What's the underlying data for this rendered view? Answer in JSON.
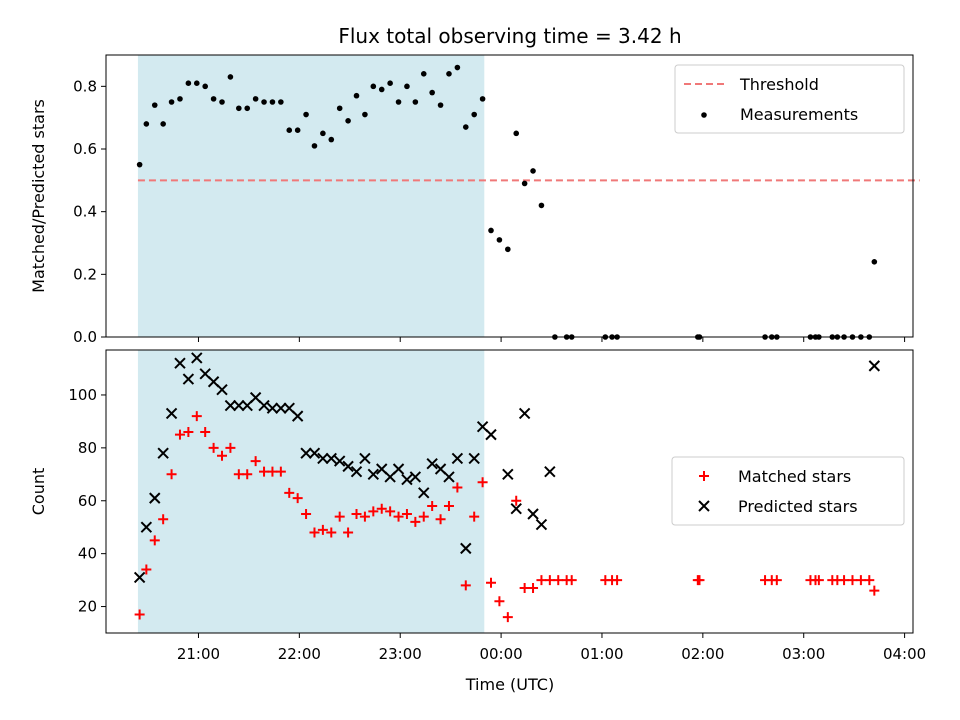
{
  "figure": {
    "title": "Flux total observing time = 3.42 h",
    "xlabel": "Time (UTC)"
  },
  "chart_data": [
    {
      "type": "scatter",
      "ylabel": "Matched/Predicted stars",
      "ylim": [
        0,
        0.9
      ],
      "yticks": [
        "0.0",
        "0.2",
        "0.4",
        "0.6",
        "0.8"
      ],
      "xlim": [
        "20:05",
        "04:05"
      ],
      "shaded_region": {
        "from": "20:24",
        "to": "23:50",
        "color": "#d3eaf0"
      },
      "threshold": {
        "name": "Threshold",
        "value": 0.5,
        "from": "20:24",
        "to": "04:09",
        "color": "#f07878"
      },
      "legend": {
        "position": "top-right",
        "entries": [
          "Threshold",
          "Measurements"
        ]
      },
      "series": [
        {
          "name": "Measurements",
          "marker": "dot",
          "color": "#000000",
          "points": [
            [
              "20:25",
              0.55
            ],
            [
              "20:29",
              0.68
            ],
            [
              "20:34",
              0.74
            ],
            [
              "20:39",
              0.68
            ],
            [
              "20:44",
              0.75
            ],
            [
              "20:49",
              0.76
            ],
            [
              "20:54",
              0.81
            ],
            [
              "20:59",
              0.81
            ],
            [
              "21:04",
              0.8
            ],
            [
              "21:09",
              0.76
            ],
            [
              "21:14",
              0.75
            ],
            [
              "21:19",
              0.83
            ],
            [
              "21:24",
              0.73
            ],
            [
              "21:29",
              0.73
            ],
            [
              "21:34",
              0.76
            ],
            [
              "21:39",
              0.75
            ],
            [
              "21:44",
              0.75
            ],
            [
              "21:49",
              0.75
            ],
            [
              "21:54",
              0.66
            ],
            [
              "21:59",
              0.66
            ],
            [
              "22:04",
              0.71
            ],
            [
              "22:09",
              0.61
            ],
            [
              "22:14",
              0.65
            ],
            [
              "22:19",
              0.63
            ],
            [
              "22:24",
              0.73
            ],
            [
              "22:29",
              0.69
            ],
            [
              "22:34",
              0.77
            ],
            [
              "22:39",
              0.71
            ],
            [
              "22:44",
              0.8
            ],
            [
              "22:49",
              0.79
            ],
            [
              "22:54",
              0.81
            ],
            [
              "22:59",
              0.75
            ],
            [
              "23:04",
              0.8
            ],
            [
              "23:09",
              0.75
            ],
            [
              "23:14",
              0.84
            ],
            [
              "23:19",
              0.78
            ],
            [
              "23:24",
              0.74
            ],
            [
              "23:29",
              0.84
            ],
            [
              "23:34",
              0.86
            ],
            [
              "23:39",
              0.67
            ],
            [
              "23:44",
              0.71
            ],
            [
              "23:49",
              0.76
            ],
            [
              "23:54",
              0.34
            ],
            [
              "23:59",
              0.31
            ],
            [
              "00:04",
              0.28
            ],
            [
              "00:09",
              0.65
            ],
            [
              "00:14",
              0.49
            ],
            [
              "00:19",
              0.53
            ],
            [
              "00:24",
              0.42
            ],
            [
              "00:32",
              0.0
            ],
            [
              "00:39",
              0.0
            ],
            [
              "00:42",
              0.0
            ],
            [
              "01:02",
              0.0
            ],
            [
              "01:06",
              0.0
            ],
            [
              "01:09",
              0.0
            ],
            [
              "01:57",
              0.0
            ],
            [
              "01:58",
              0.0
            ],
            [
              "02:37",
              0.0
            ],
            [
              "02:41",
              0.0
            ],
            [
              "02:44",
              0.0
            ],
            [
              "03:04",
              0.0
            ],
            [
              "03:07",
              0.0
            ],
            [
              "03:09",
              0.0
            ],
            [
              "03:17",
              0.0
            ],
            [
              "03:20",
              0.0
            ],
            [
              "03:24",
              0.0
            ],
            [
              "03:29",
              0.0
            ],
            [
              "03:34",
              0.0
            ],
            [
              "03:39",
              0.0
            ],
            [
              "03:42",
              0.24
            ]
          ]
        }
      ]
    },
    {
      "type": "scatter",
      "ylabel": "Count",
      "ylim": [
        10,
        117
      ],
      "yticks": [
        "20",
        "40",
        "60",
        "80",
        "100"
      ],
      "xticks": [
        "21:00",
        "22:00",
        "23:00",
        "00:00",
        "01:00",
        "02:00",
        "03:00",
        "04:00"
      ],
      "shaded_region": {
        "from": "20:24",
        "to": "23:50",
        "color": "#d3eaf0"
      },
      "legend": {
        "position": "center-right",
        "entries": [
          "Matched stars",
          "Predicted stars"
        ]
      },
      "series": [
        {
          "name": "Matched stars",
          "marker": "plus",
          "color": "#ff0000",
          "points": [
            [
              "20:25",
              17
            ],
            [
              "20:29",
              34
            ],
            [
              "20:34",
              45
            ],
            [
              "20:39",
              53
            ],
            [
              "20:44",
              70
            ],
            [
              "20:49",
              85
            ],
            [
              "20:54",
              86
            ],
            [
              "20:59",
              92
            ],
            [
              "21:04",
              86
            ],
            [
              "21:09",
              80
            ],
            [
              "21:14",
              77
            ],
            [
              "21:19",
              80
            ],
            [
              "21:24",
              70
            ],
            [
              "21:29",
              70
            ],
            [
              "21:34",
              75
            ],
            [
              "21:39",
              71
            ],
            [
              "21:44",
              71
            ],
            [
              "21:49",
              71
            ],
            [
              "21:54",
              63
            ],
            [
              "21:59",
              61
            ],
            [
              "22:04",
              55
            ],
            [
              "22:09",
              48
            ],
            [
              "22:14",
              49
            ],
            [
              "22:19",
              48
            ],
            [
              "22:24",
              54
            ],
            [
              "22:29",
              48
            ],
            [
              "22:34",
              55
            ],
            [
              "22:39",
              54
            ],
            [
              "22:44",
              56
            ],
            [
              "22:49",
              57
            ],
            [
              "22:54",
              56
            ],
            [
              "22:59",
              54
            ],
            [
              "23:04",
              55
            ],
            [
              "23:09",
              52
            ],
            [
              "23:14",
              54
            ],
            [
              "23:19",
              58
            ],
            [
              "23:24",
              53
            ],
            [
              "23:29",
              58
            ],
            [
              "23:34",
              65
            ],
            [
              "23:39",
              28
            ],
            [
              "23:44",
              54
            ],
            [
              "23:49",
              67
            ],
            [
              "23:54",
              29
            ],
            [
              "23:59",
              22
            ],
            [
              "00:04",
              16
            ],
            [
              "00:09",
              60
            ],
            [
              "00:14",
              27
            ],
            [
              "00:19",
              27
            ],
            [
              "00:24",
              30
            ],
            [
              "00:29",
              30
            ],
            [
              "00:34",
              30
            ],
            [
              "00:39",
              30
            ],
            [
              "00:42",
              30
            ],
            [
              "01:02",
              30
            ],
            [
              "01:06",
              30
            ],
            [
              "01:09",
              30
            ],
            [
              "01:57",
              30
            ],
            [
              "01:58",
              30
            ],
            [
              "02:37",
              30
            ],
            [
              "02:41",
              30
            ],
            [
              "02:44",
              30
            ],
            [
              "03:04",
              30
            ],
            [
              "03:07",
              30
            ],
            [
              "03:09",
              30
            ],
            [
              "03:17",
              30
            ],
            [
              "03:20",
              30
            ],
            [
              "03:24",
              30
            ],
            [
              "03:29",
              30
            ],
            [
              "03:34",
              30
            ],
            [
              "03:39",
              30
            ],
            [
              "03:42",
              26
            ]
          ]
        },
        {
          "name": "Predicted stars",
          "marker": "x",
          "color": "#000000",
          "points": [
            [
              "20:25",
              31
            ],
            [
              "20:29",
              50
            ],
            [
              "20:34",
              61
            ],
            [
              "20:39",
              78
            ],
            [
              "20:44",
              93
            ],
            [
              "20:49",
              112
            ],
            [
              "20:54",
              106
            ],
            [
              "20:59",
              114
            ],
            [
              "21:04",
              108
            ],
            [
              "21:09",
              105
            ],
            [
              "21:14",
              102
            ],
            [
              "21:19",
              96
            ],
            [
              "21:24",
              96
            ],
            [
              "21:29",
              96
            ],
            [
              "21:34",
              99
            ],
            [
              "21:39",
              96
            ],
            [
              "21:44",
              95
            ],
            [
              "21:49",
              95
            ],
            [
              "21:54",
              95
            ],
            [
              "21:59",
              92
            ],
            [
              "22:04",
              78
            ],
            [
              "22:09",
              78
            ],
            [
              "22:14",
              76
            ],
            [
              "22:19",
              76
            ],
            [
              "22:24",
              75
            ],
            [
              "22:29",
              73
            ],
            [
              "22:34",
              71
            ],
            [
              "22:39",
              76
            ],
            [
              "22:44",
              70
            ],
            [
              "22:49",
              72
            ],
            [
              "22:54",
              69
            ],
            [
              "22:59",
              72
            ],
            [
              "23:04",
              68
            ],
            [
              "23:09",
              69
            ],
            [
              "23:14",
              63
            ],
            [
              "23:19",
              74
            ],
            [
              "23:24",
              72
            ],
            [
              "23:29",
              69
            ],
            [
              "23:34",
              76
            ],
            [
              "23:39",
              42
            ],
            [
              "23:44",
              76
            ],
            [
              "23:49",
              88
            ],
            [
              "23:54",
              85
            ],
            [
              "00:04",
              70
            ],
            [
              "00:09",
              57
            ],
            [
              "00:14",
              93
            ],
            [
              "00:19",
              55
            ],
            [
              "00:24",
              51
            ],
            [
              "00:29",
              71
            ],
            [
              "03:42",
              111
            ]
          ]
        }
      ]
    }
  ]
}
